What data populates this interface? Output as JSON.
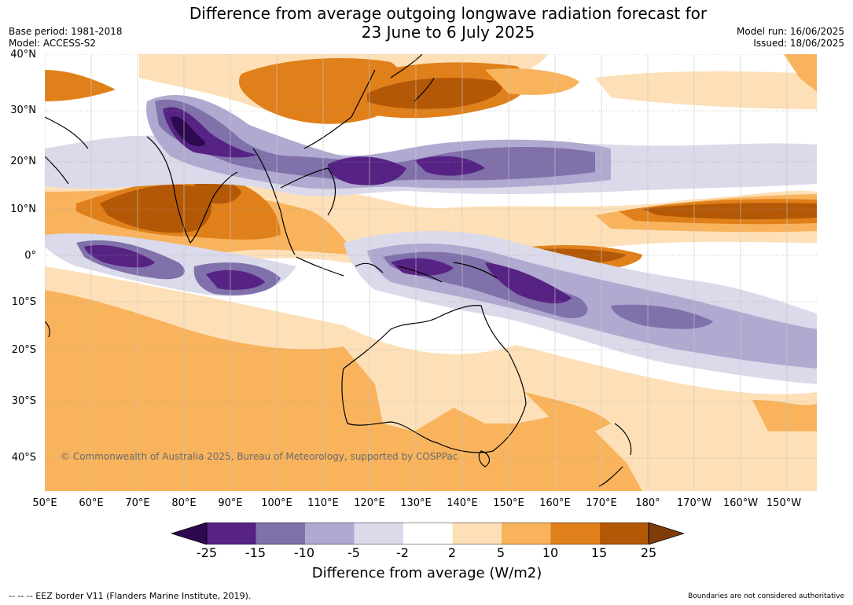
{
  "header": {
    "title_line1": "Difference from average outgoing longwave radiation forecast for",
    "title_line2": "23 June to 6 July 2025",
    "base_period": "Base period: 1981-2018",
    "model": "Model: ACCESS-S2",
    "model_run": "Model run: 16/06/2025",
    "issued": "Issued: 18/06/2025"
  },
  "map": {
    "lat_labels": [
      "40°N",
      "30°N",
      "20°N",
      "10°N",
      "0°",
      "10°S",
      "20°S",
      "30°S",
      "40°S"
    ],
    "lon_labels": [
      "50°E",
      "60°E",
      "70°E",
      "80°E",
      "90°E",
      "100°E",
      "110°E",
      "120°E",
      "130°E",
      "140°E",
      "150°E",
      "160°E",
      "170°E",
      "180°",
      "170°W",
      "160°W",
      "150°W"
    ],
    "copyright": "© Commonwealth of Australia 2025, Bureau of Meteorology, supported by COSPPac",
    "colors": {
      "lt_-25": "#2d0a4f",
      "-25_-15": "#562283",
      "-15_-10": "#8071ab",
      "-10_-5": "#b0a9d0",
      "-5_-2": "#dadaeb",
      "-2_2": "#ffffff",
      "2_5": "#fde0b8",
      "5_10": "#f8b35c",
      "10_15": "#e0801a",
      "15_25": "#b35806",
      "gt_25": "#7f3b08"
    }
  },
  "legend": {
    "tick_labels": [
      "-25",
      "-15",
      "-10",
      "-5",
      "-2",
      "2",
      "5",
      "10",
      "15",
      "25"
    ],
    "title": "Difference from average (W/m2)"
  },
  "footer": {
    "eez_note": "--  --  -- EEZ border V11 (Flanders Marine Institute, 2019).",
    "disclaimer": "Boundaries are not considered authoritative"
  }
}
